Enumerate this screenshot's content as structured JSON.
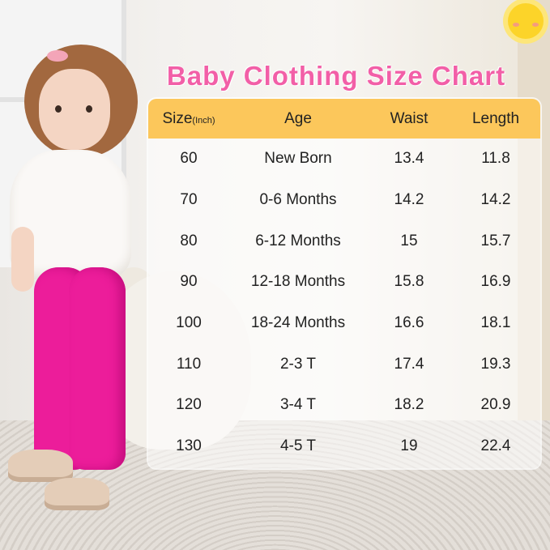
{
  "title": "Baby Clothing Size Chart",
  "accent_color": "#f25fa7",
  "header_color": "#fcc75b",
  "headers": {
    "size": "Size",
    "size_unit": "(Inch)",
    "age": "Age",
    "waist": "Waist",
    "length": "Length"
  },
  "rows": [
    {
      "size": "60",
      "age": "New Born",
      "waist": "13.4",
      "length": "11.8"
    },
    {
      "size": "70",
      "age": "0-6 Months",
      "waist": "14.2",
      "length": "14.2"
    },
    {
      "size": "80",
      "age": "6-12 Months",
      "waist": "15",
      "length": "15.7"
    },
    {
      "size": "90",
      "age": "12-18 Months",
      "waist": "15.8",
      "length": "16.9"
    },
    {
      "size": "100",
      "age": "18-24 Months",
      "waist": "16.6",
      "length": "18.1"
    },
    {
      "size": "110",
      "age": "2-3 T",
      "waist": "17.4",
      "length": "19.3"
    },
    {
      "size": "120",
      "age": "3-4 T",
      "waist": "18.2",
      "length": "20.9"
    },
    {
      "size": "130",
      "age": "4-5 T",
      "waist": "19",
      "length": "22.4"
    }
  ]
}
